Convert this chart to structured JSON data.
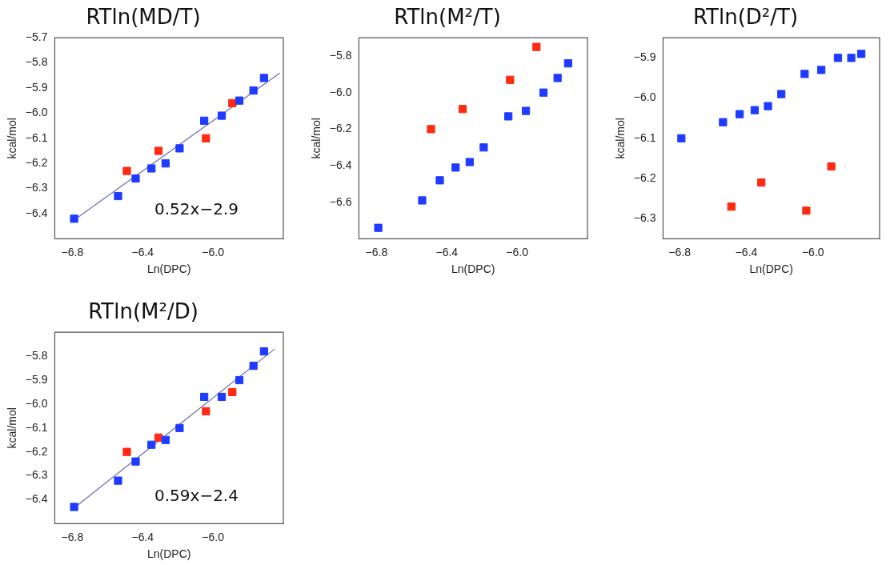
{
  "chart_data": [
    {
      "type": "scatter",
      "title": "RTln(MD/T)",
      "xlabel": "Ln(DPC)",
      "ylabel": "kcal/mol",
      "marker": "square",
      "grid": false,
      "legend": false,
      "xlim": [
        -6.9,
        -5.6
      ],
      "xticks": [
        {
          "value": -6.8,
          "label": "−6.8"
        },
        {
          "value": -6.4,
          "label": "−6.4"
        },
        {
          "value": -6.0,
          "label": "−6.0"
        }
      ],
      "ylim": [
        -6.5,
        -5.7
      ],
      "yticks": [
        {
          "value": -6.4,
          "label": "−6.4"
        },
        {
          "value": -6.3,
          "label": "−6.3"
        },
        {
          "value": -6.2,
          "label": "−6.2"
        },
        {
          "value": -6.1,
          "label": "−6.1"
        },
        {
          "value": -6.0,
          "label": "−6.0"
        },
        {
          "value": -5.9,
          "label": "−5.9"
        },
        {
          "value": -5.8,
          "label": "−5.8"
        },
        {
          "value": -5.7,
          "label": "−5.7"
        }
      ],
      "annotations": [
        "0.52x−2.9"
      ],
      "series": [
        {
          "color": "#1f3bff",
          "x": [
            -6.79,
            -6.54,
            -6.44,
            -6.35,
            -6.27,
            -6.19,
            -6.05,
            -5.95,
            -5.85,
            -5.77,
            -5.71
          ],
          "values": [
            -6.42,
            -6.33,
            -6.26,
            -6.22,
            -6.2,
            -6.14,
            -6.03,
            -6.01,
            -5.95,
            -5.91,
            -5.86
          ]
        },
        {
          "color": "#ff2a10",
          "x": [
            -6.49,
            -6.31,
            -6.04,
            -5.89
          ],
          "values": [
            -6.23,
            -6.15,
            -6.1,
            -5.96
          ]
        },
        {
          "type": "line",
          "color": "#6a6ab4",
          "marker": "none",
          "x": [
            -6.8,
            -5.62
          ],
          "values": [
            -6.43,
            -5.84
          ]
        }
      ]
    },
    {
      "type": "scatter",
      "title": "RTln(M²/T)",
      "xlabel": "Ln(DPC)",
      "ylabel": "kcal/mol",
      "marker": "square",
      "grid": false,
      "legend": false,
      "xlim": [
        -6.9,
        -5.6
      ],
      "xticks": [
        {
          "value": -6.8,
          "label": "−6.8"
        },
        {
          "value": -6.4,
          "label": "−6.4"
        },
        {
          "value": -6.0,
          "label": "−6.0"
        }
      ],
      "ylim": [
        -6.8,
        -5.7
      ],
      "yticks": [
        {
          "value": -6.6,
          "label": "−6.6"
        },
        {
          "value": -6.4,
          "label": "−6.4"
        },
        {
          "value": -6.2,
          "label": "−6.2"
        },
        {
          "value": -6.0,
          "label": "−6.0"
        },
        {
          "value": -5.8,
          "label": "−5.8"
        }
      ],
      "series": [
        {
          "color": "#1f3bff",
          "x": [
            -6.79,
            -6.54,
            -6.44,
            -6.35,
            -6.27,
            -6.19,
            -6.05,
            -5.95,
            -5.85,
            -5.77,
            -5.71
          ],
          "values": [
            -6.74,
            -6.59,
            -6.48,
            -6.41,
            -6.38,
            -6.3,
            -6.13,
            -6.1,
            -6.0,
            -5.92,
            -5.84
          ]
        },
        {
          "color": "#ff2a10",
          "x": [
            -6.49,
            -6.31,
            -6.04,
            -5.89
          ],
          "values": [
            -6.2,
            -6.09,
            -5.93,
            -5.75
          ]
        }
      ]
    },
    {
      "type": "scatter",
      "title": "RTln(D²/T)",
      "xlabel": "Ln(DPC)",
      "ylabel": "kcal/mol",
      "marker": "square",
      "grid": false,
      "legend": false,
      "xlim": [
        -6.9,
        -5.6
      ],
      "xticks": [
        {
          "value": -6.8,
          "label": "−6.8"
        },
        {
          "value": -6.4,
          "label": "−6.4"
        },
        {
          "value": -6.0,
          "label": "−6.0"
        }
      ],
      "ylim": [
        -6.35,
        -5.85
      ],
      "yticks": [
        {
          "value": -6.3,
          "label": "−6.3"
        },
        {
          "value": -6.2,
          "label": "−6.2"
        },
        {
          "value": -6.1,
          "label": "−6.1"
        },
        {
          "value": -6.0,
          "label": "−6.0"
        },
        {
          "value": -5.9,
          "label": "−5.9"
        }
      ],
      "series": [
        {
          "color": "#1f3bff",
          "x": [
            -6.79,
            -6.54,
            -6.44,
            -6.35,
            -6.27,
            -6.19,
            -6.05,
            -5.95,
            -5.85,
            -5.77,
            -5.71
          ],
          "values": [
            -6.1,
            -6.06,
            -6.04,
            -6.03,
            -6.02,
            -5.99,
            -5.94,
            -5.93,
            -5.9,
            -5.9,
            -5.89
          ]
        },
        {
          "color": "#ff2a10",
          "x": [
            -6.49,
            -6.31,
            -6.04,
            -5.89
          ],
          "values": [
            -6.27,
            -6.21,
            -6.28,
            -6.17
          ]
        }
      ]
    },
    {
      "type": "scatter",
      "title": "RTln(M²/D)",
      "xlabel": "Ln(DPC)",
      "ylabel": "kcal/mol",
      "marker": "square",
      "grid": false,
      "legend": false,
      "xlim": [
        -6.9,
        -5.6
      ],
      "xticks": [
        {
          "value": -6.8,
          "label": "−6.8"
        },
        {
          "value": -6.4,
          "label": "−6.4"
        },
        {
          "value": -6.0,
          "label": "−6.0"
        }
      ],
      "ylim": [
        -6.5,
        -5.7
      ],
      "yticks": [
        {
          "value": -6.4,
          "label": "−6.4"
        },
        {
          "value": -6.3,
          "label": "−6.3"
        },
        {
          "value": -6.2,
          "label": "−6.2"
        },
        {
          "value": -6.1,
          "label": "−6.1"
        },
        {
          "value": -6.0,
          "label": "−6.0"
        },
        {
          "value": -5.9,
          "label": "−5.9"
        },
        {
          "value": -5.8,
          "label": "−5.8"
        }
      ],
      "annotations": [
        "0.59x−2.4"
      ],
      "series": [
        {
          "color": "#1f3bff",
          "x": [
            -6.79,
            -6.54,
            -6.44,
            -6.35,
            -6.27,
            -6.19,
            -6.05,
            -5.95,
            -5.85,
            -5.77,
            -5.71
          ],
          "values": [
            -6.43,
            -6.32,
            -6.24,
            -6.17,
            -6.15,
            -6.1,
            -5.97,
            -5.97,
            -5.9,
            -5.84,
            -5.78
          ]
        },
        {
          "color": "#ff2a10",
          "x": [
            -6.49,
            -6.31,
            -6.04,
            -5.89
          ],
          "values": [
            -6.2,
            -6.14,
            -6.03,
            -5.95
          ]
        },
        {
          "type": "line",
          "color": "#6a6ab4",
          "marker": "none",
          "x": [
            -6.8,
            -5.65
          ],
          "values": [
            -6.44,
            -5.77
          ]
        }
      ]
    }
  ]
}
